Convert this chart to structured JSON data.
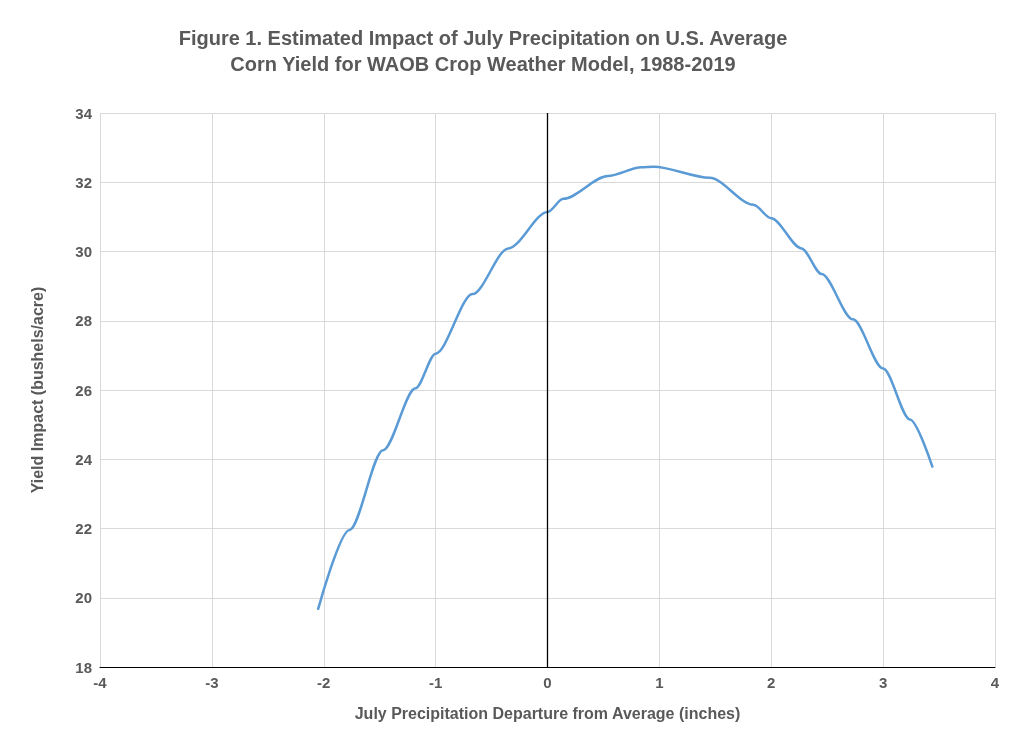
{
  "chart_data": {
    "type": "line",
    "title": "Figure 1. Estimated Impact of July Precipitation on U.S. Average\nCorn Yield for WAOB Crop Weather Model, 1988-2019",
    "xlabel": "July Precipitation Departure from Average (inches)",
    "ylabel": "Yield Impact (bushels/acre)",
    "series": [
      {
        "color": "#5b9bd5",
        "x": [
          -2.05,
          -1.77,
          -1.47,
          -1.18,
          -1,
          -0.67,
          -0.35,
          0,
          0.14,
          0.54,
          0.84,
          0.95,
          1.45,
          1.84,
          2,
          2.27,
          2.45,
          2.73,
          3,
          3.24,
          3.44
        ],
        "values": [
          19.68,
          21.96,
          24.26,
          26.05,
          27.05,
          28.77,
          30.09,
          31.14,
          31.52,
          32.18,
          32.43,
          32.45,
          32.13,
          31.35,
          30.96,
          30.09,
          29.35,
          28.04,
          26.62,
          25.15,
          23.79
        ]
      }
    ],
    "xlim": [
      -4,
      4
    ],
    "xticks": [
      -4,
      -3,
      -2,
      -1,
      0,
      1,
      2,
      3,
      4
    ],
    "ylim": [
      18,
      34
    ],
    "yticks": [
      18,
      20,
      22,
      24,
      26,
      28,
      30,
      32,
      34
    ],
    "ref_lines": [
      {
        "axis": "x",
        "value": 0,
        "color": "#000000"
      }
    ],
    "grid": true,
    "marker": "none",
    "line_style": "solid"
  }
}
